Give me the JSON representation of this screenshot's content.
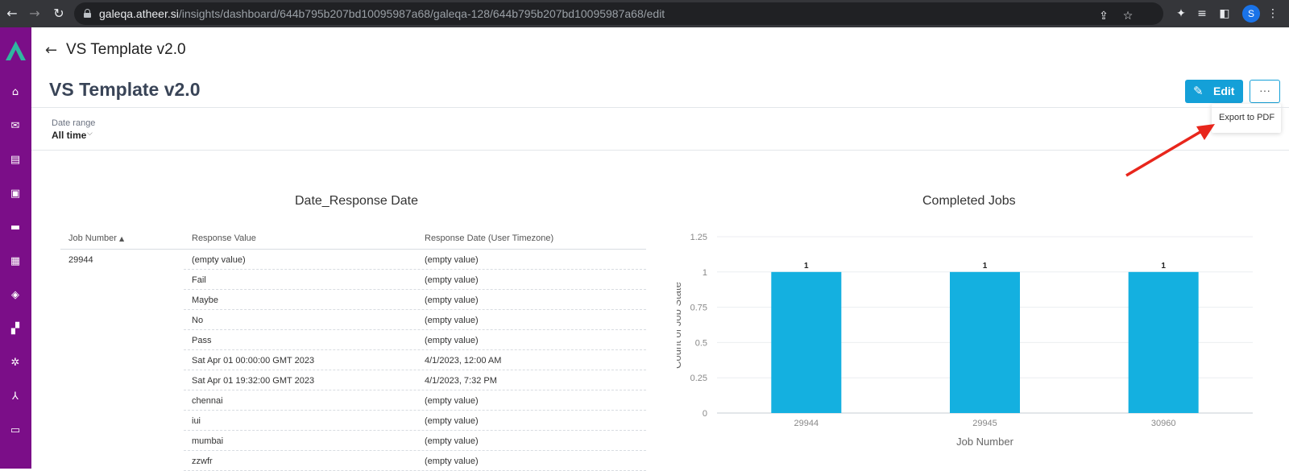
{
  "browser": {
    "url_host": "galeqa.atheer.si",
    "url_path": "/insights/dashboard/644b795b207bd10095987a68/galeqa-128/644b795b207bd10095987a68/edit",
    "profile_initial": "S"
  },
  "header": {
    "breadcrumb_title": "VS Template v2.0",
    "page_title": "VS Template v2.0",
    "edit_label": "Edit",
    "more_label": "···",
    "menu_export": "Export to PDF"
  },
  "filter": {
    "label": "Date range",
    "value": "All time"
  },
  "table_widget": {
    "title": "Date_Response Date",
    "columns": [
      "Job Number",
      "Response Value",
      "Response Date (User Timezone)"
    ],
    "rows": [
      [
        "29944",
        "(empty value)",
        "(empty value)"
      ],
      [
        "",
        "Fail",
        "(empty value)"
      ],
      [
        "",
        "Maybe",
        "(empty value)"
      ],
      [
        "",
        "No",
        "(empty value)"
      ],
      [
        "",
        "Pass",
        "(empty value)"
      ],
      [
        "",
        "Sat Apr 01 00:00:00 GMT 2023",
        "4/1/2023, 12:00 AM"
      ],
      [
        "",
        "Sat Apr 01 19:32:00 GMT 2023",
        "4/1/2023, 7:32 PM"
      ],
      [
        "",
        "chennai",
        "(empty value)"
      ],
      [
        "",
        "iui",
        "(empty value)"
      ],
      [
        "",
        "mumbai",
        "(empty value)"
      ],
      [
        "",
        "zzwfr",
        "(empty value)"
      ]
    ]
  },
  "chart_data": {
    "type": "bar",
    "title": "Completed Jobs",
    "xlabel": "Job Number",
    "ylabel": "Count of Job State",
    "categories": [
      "29944",
      "29945",
      "30960"
    ],
    "values": [
      1,
      1,
      1
    ],
    "data_labels": [
      "1",
      "1",
      "1"
    ],
    "yticks": [
      "0",
      "0.25",
      "0.5",
      "0.75",
      "1",
      "1.25"
    ],
    "ylim": [
      0,
      1.25
    ],
    "bar_color": "#14b0e0",
    "grid": true,
    "legend": "none"
  },
  "colors": {
    "sidebar": "#7b0e88",
    "accent": "#14a0d8",
    "annotation_arrow": "#e8261c"
  }
}
